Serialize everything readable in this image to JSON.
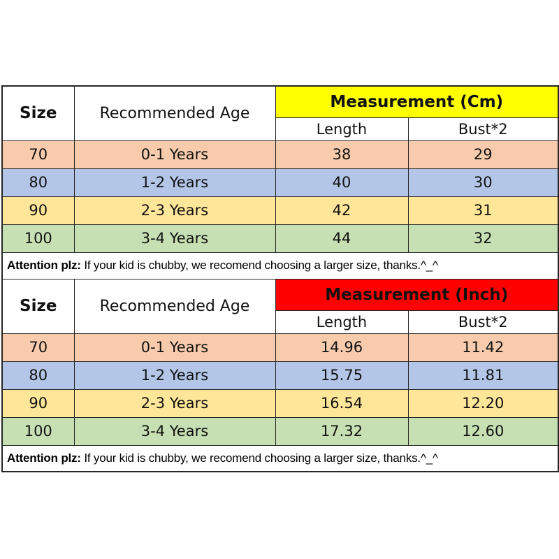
{
  "colors": {
    "header_cm_bg": "#ffff00",
    "header_inch_bg": "#ff0000",
    "row_70_bg": "#f8cbad",
    "row_80_bg": "#b4c6e7",
    "row_90_bg": "#ffe699",
    "row_100_bg": "#c6e0b4",
    "border": "#262626",
    "text": "#111111",
    "page_bg": "#ffffff"
  },
  "attention": {
    "bold": "Attention plz:",
    "rest": " If your kid is chubby, we recomend choosing a larger size, thanks.^_^"
  },
  "tables": [
    {
      "header": {
        "size": "Size",
        "age": "Recommended Age",
        "measurement": "Measurement (Cm)",
        "length": "Length",
        "bust": "Bust*2"
      },
      "rows": [
        {
          "size": "70",
          "age": "0-1 Years",
          "length": "38",
          "bust": "29"
        },
        {
          "size": "80",
          "age": "1-2 Years",
          "length": "40",
          "bust": "30"
        },
        {
          "size": "90",
          "age": "2-3 Years",
          "length": "42",
          "bust": "31"
        },
        {
          "size": "100",
          "age": "3-4 Years",
          "length": "44",
          "bust": "32"
        }
      ]
    },
    {
      "header": {
        "size": "Size",
        "age": "Recommended Age",
        "measurement": "Measurement (Inch)",
        "length": "Length",
        "bust": "Bust*2"
      },
      "rows": [
        {
          "size": "70",
          "age": "0-1 Years",
          "length": "14.96",
          "bust": "11.42"
        },
        {
          "size": "80",
          "age": "1-2 Years",
          "length": "15.75",
          "bust": "11.81"
        },
        {
          "size": "90",
          "age": "2-3 Years",
          "length": "16.54",
          "bust": "12.20"
        },
        {
          "size": "100",
          "age": "3-4 Years",
          "length": "17.32",
          "bust": "12.60"
        }
      ]
    }
  ]
}
